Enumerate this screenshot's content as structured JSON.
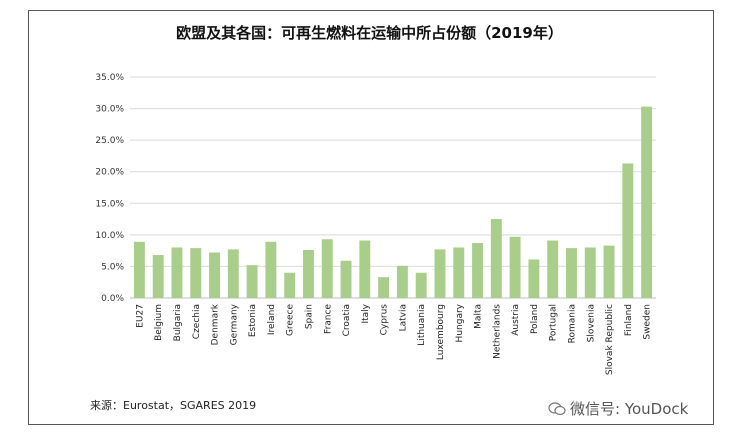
{
  "source_text": "来源：Eurostat，SGARES 2019",
  "watermark": "微信号: YouDock",
  "colors": {
    "bar": "#a9cd8b",
    "grid": "#d9d9d9",
    "axis": "#bfbfbf"
  },
  "chart_data": {
    "type": "bar",
    "title": "欧盟及其各国：可再生燃料在运输中所占份额（2019年）",
    "xlabel": "",
    "ylabel": "",
    "ylim": [
      0,
      35
    ],
    "yticks": [
      0,
      5,
      10,
      15,
      20,
      25,
      30,
      35
    ],
    "ytick_labels": [
      "0.0%",
      "5.0%",
      "10.0%",
      "15.0%",
      "20.0%",
      "25.0%",
      "30.0%",
      "35.0%"
    ],
    "grid": true,
    "categories": [
      "EU27",
      "Belgium",
      "Bulgaria",
      "Czechia",
      "Denmark",
      "Germany",
      "Estonia",
      "Ireland",
      "Greece",
      "Spain",
      "France",
      "Croatia",
      "Italy",
      "Cyprus",
      "Latvia",
      "Lithuania",
      "Luxembourg",
      "Hungary",
      "Malta",
      "Netherlands",
      "Austria",
      "Poland",
      "Portugal",
      "Romania",
      "Slovenia",
      "Slovak Republic",
      "Finland",
      "Sweden"
    ],
    "values": [
      8.9,
      6.8,
      8.0,
      7.9,
      7.2,
      7.7,
      5.2,
      8.9,
      4.0,
      7.6,
      9.3,
      5.9,
      9.1,
      3.3,
      5.1,
      4.0,
      7.7,
      8.0,
      8.7,
      12.5,
      9.7,
      6.1,
      9.1,
      7.9,
      8.0,
      8.3,
      21.3,
      30.3
    ]
  }
}
